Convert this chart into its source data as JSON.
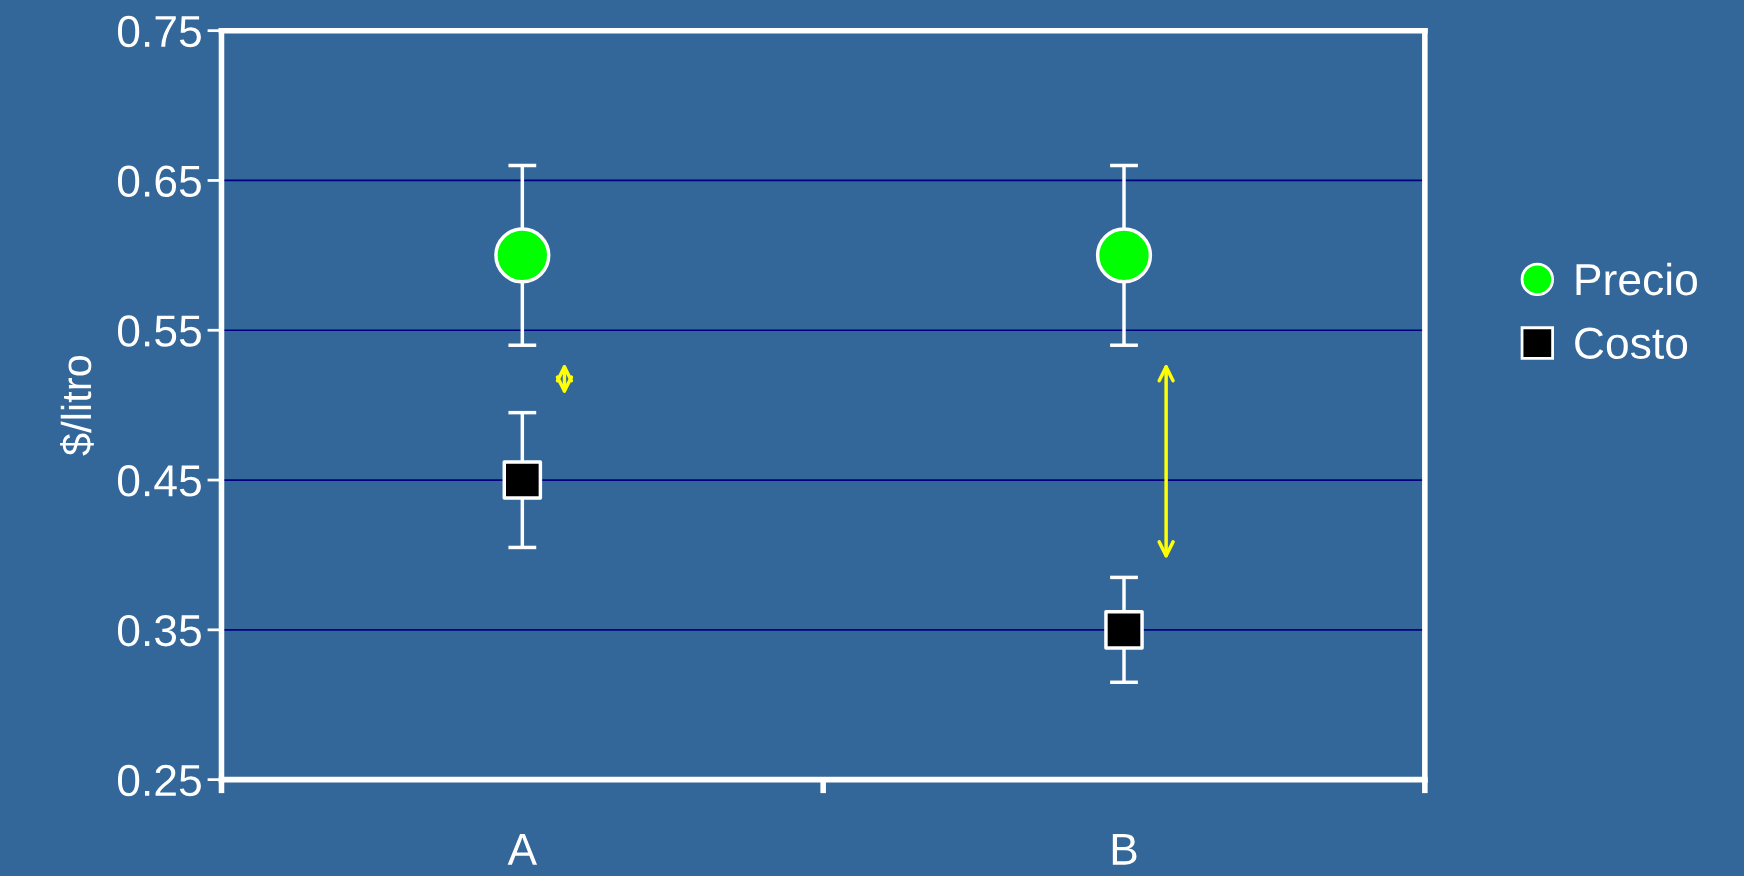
{
  "chart_data": {
    "type": "scatter",
    "ylabel": "$/litro",
    "categories": [
      "A",
      "B"
    ],
    "series": [
      {
        "name": "Precio",
        "color": "#00ff00",
        "marker": "circle",
        "values": [
          0.6,
          0.6
        ],
        "errors": [
          [
            0.54,
            0.66
          ],
          [
            0.54,
            0.66
          ]
        ]
      },
      {
        "name": "Costo",
        "color": "#000000",
        "marker": "square",
        "values": [
          0.45,
          0.35
        ],
        "errors": [
          [
            0.405,
            0.495
          ],
          [
            0.315,
            0.385
          ]
        ]
      }
    ],
    "ylim": [
      0.25,
      0.75
    ],
    "yticks": [
      0.25,
      0.35,
      0.45,
      0.55,
      0.65,
      0.75
    ],
    "grid": "y",
    "legend": "right"
  }
}
